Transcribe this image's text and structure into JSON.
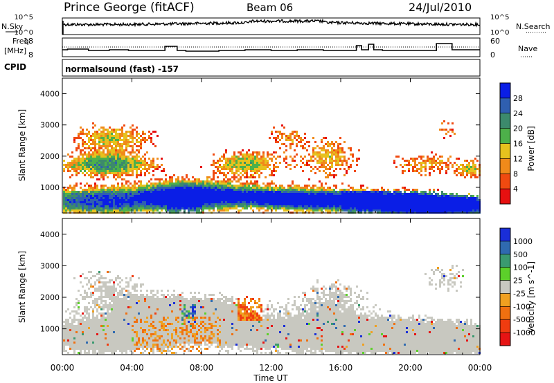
{
  "header": {
    "station": "Prince George (fitACF)",
    "beam": "Beam 06",
    "date": "24/Jul/2010"
  },
  "nsky_panel": {
    "left_label": "N.Sky",
    "right_label": "N.Search",
    "left_ticks": [
      "10^5",
      "10^0"
    ],
    "right_ticks": [
      "10^5",
      "10^0"
    ]
  },
  "freq_panel": {
    "left_label_top": "Freq.",
    "left_label_bottom": "[MHz]",
    "right_label": "Nave",
    "left_ticks": [
      "18",
      "8"
    ],
    "right_ticks": [
      "60",
      "0"
    ]
  },
  "cpid": {
    "label": "CPID",
    "text": "normalsound (fast) -157"
  },
  "chart_data": [
    {
      "type": "heatmap",
      "name": "power",
      "ylabel": "Slant Range [km]",
      "ylim": [
        180,
        4500
      ],
      "yticks": [
        "1000",
        "2000",
        "3000",
        "4000"
      ],
      "xlim": [
        0,
        24
      ],
      "colorbar_label": "Power [dB]",
      "colorbar_ticks": [
        "28",
        "24",
        "20",
        "16",
        "12",
        "8",
        "4"
      ],
      "colors": [
        "#0a1ee6",
        "#2f5fb0",
        "#3c8a6c",
        "#4db04a",
        "#e6c21e",
        "#f08a1a",
        "#f04a10",
        "#e61010"
      ]
    },
    {
      "type": "heatmap",
      "name": "velocity",
      "ylabel": "Slant Range [km]",
      "ylim": [
        180,
        4500
      ],
      "yticks": [
        "1000",
        "2000",
        "3000",
        "4000"
      ],
      "xlim": [
        0,
        24
      ],
      "xlabel": "Time UT",
      "xticks": [
        "00:00",
        "04:00",
        "08:00",
        "12:00",
        "16:00",
        "20:00",
        "00:00"
      ],
      "colorbar_label": "Velocity [m s^-1]",
      "colorbar_ticks": [
        "1000",
        "500",
        "100",
        "25",
        "-25",
        "-100",
        "-500",
        "-1000"
      ],
      "colors": [
        "#1a2ed8",
        "#2f6ab0",
        "#3a9a70",
        "#5cd02a",
        "#c8c8c0",
        "#f0a020",
        "#f07010",
        "#f03c10",
        "#e61414"
      ]
    }
  ]
}
